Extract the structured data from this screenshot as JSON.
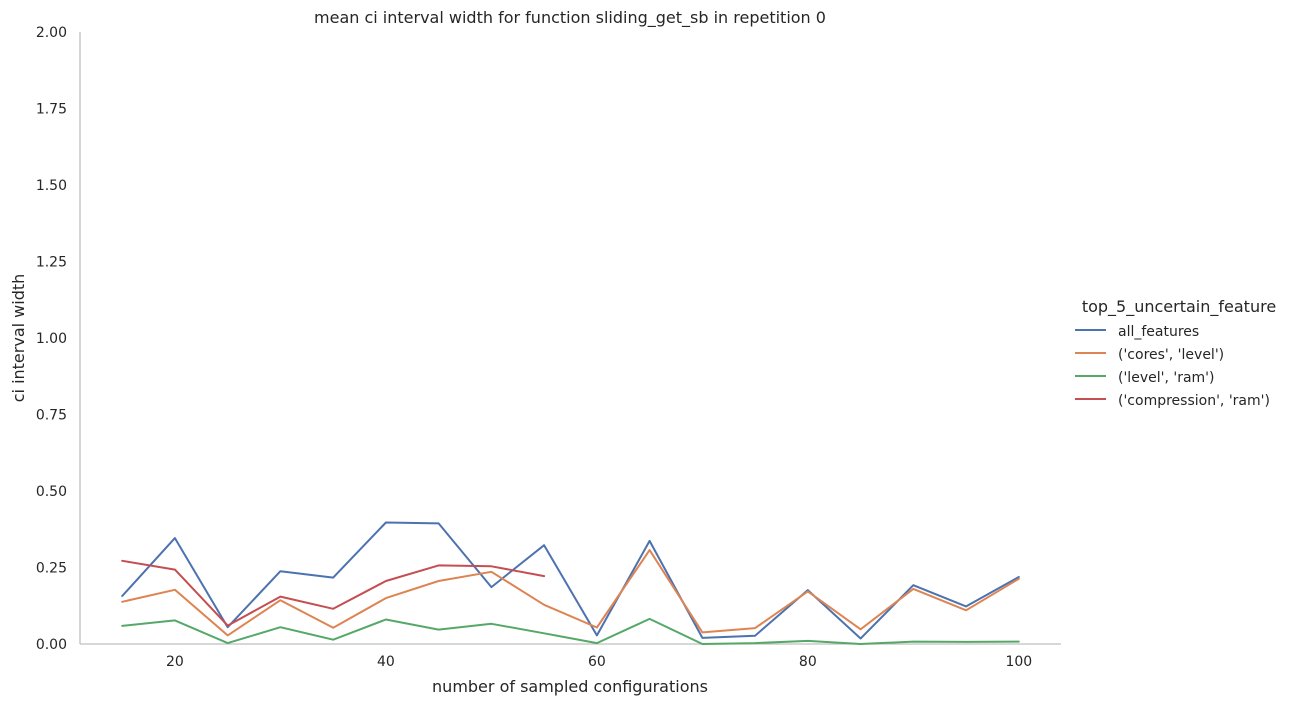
{
  "chart_data": {
    "type": "line",
    "title": "mean ci interval width for function sliding_get_sb in repetition 0",
    "xlabel": "number of sampled configurations",
    "ylabel": "ci interval width",
    "xlim": [
      11,
      104
    ],
    "ylim": [
      0,
      2
    ],
    "xticks": [
      20,
      40,
      60,
      80,
      100
    ],
    "xtick_labels": [
      "20",
      "40",
      "60",
      "80",
      "100"
    ],
    "yticks": [
      0,
      0.25,
      0.5,
      0.75,
      1.0,
      1.25,
      1.5,
      1.75,
      2.0
    ],
    "ytick_labels": [
      "0.00",
      "0.25",
      "0.50",
      "0.75",
      "1.00",
      "1.25",
      "1.50",
      "1.75",
      "2.00"
    ],
    "grid": false,
    "legend": {
      "title": "top_5_uncertain_feature",
      "placement": "right"
    },
    "series": [
      {
        "name": "all_features",
        "color": "#4c72b0",
        "x": [
          15,
          20,
          25,
          30,
          35,
          40,
          45,
          50,
          55,
          60,
          65,
          70,
          75,
          80,
          85,
          90,
          95,
          100
        ],
        "values": [
          0.157,
          0.346,
          0.055,
          0.238,
          0.217,
          0.397,
          0.394,
          0.186,
          0.323,
          0.028,
          0.337,
          0.02,
          0.027,
          0.176,
          0.018,
          0.192,
          0.123,
          0.219
        ]
      },
      {
        "name": "('cores', 'level')",
        "color": "#dd8452",
        "x": [
          15,
          20,
          25,
          30,
          35,
          40,
          45,
          50,
          55,
          60,
          65,
          70,
          75,
          80,
          85,
          90,
          95,
          100
        ],
        "values": [
          0.138,
          0.177,
          0.028,
          0.143,
          0.053,
          0.15,
          0.206,
          0.236,
          0.128,
          0.054,
          0.307,
          0.038,
          0.052,
          0.172,
          0.048,
          0.18,
          0.11,
          0.213
        ]
      },
      {
        "name": "('level', 'ram')",
        "color": "#55a868",
        "x": [
          15,
          20,
          25,
          30,
          35,
          40,
          45,
          50,
          55,
          60,
          65,
          70,
          75,
          80,
          85,
          90,
          95,
          100
        ],
        "values": [
          0.059,
          0.077,
          0.003,
          0.055,
          0.014,
          0.08,
          0.047,
          0.066,
          0.035,
          0.003,
          0.082,
          0.0,
          0.003,
          0.01,
          0.0,
          0.008,
          0.007,
          0.008
        ]
      },
      {
        "name": "('compression', 'ram')",
        "color": "#c44e52",
        "x": [
          15,
          20,
          25,
          30,
          35,
          40,
          45,
          50,
          55
        ],
        "values": [
          0.272,
          0.243,
          0.06,
          0.155,
          0.115,
          0.206,
          0.257,
          0.254,
          0.222
        ]
      }
    ]
  }
}
